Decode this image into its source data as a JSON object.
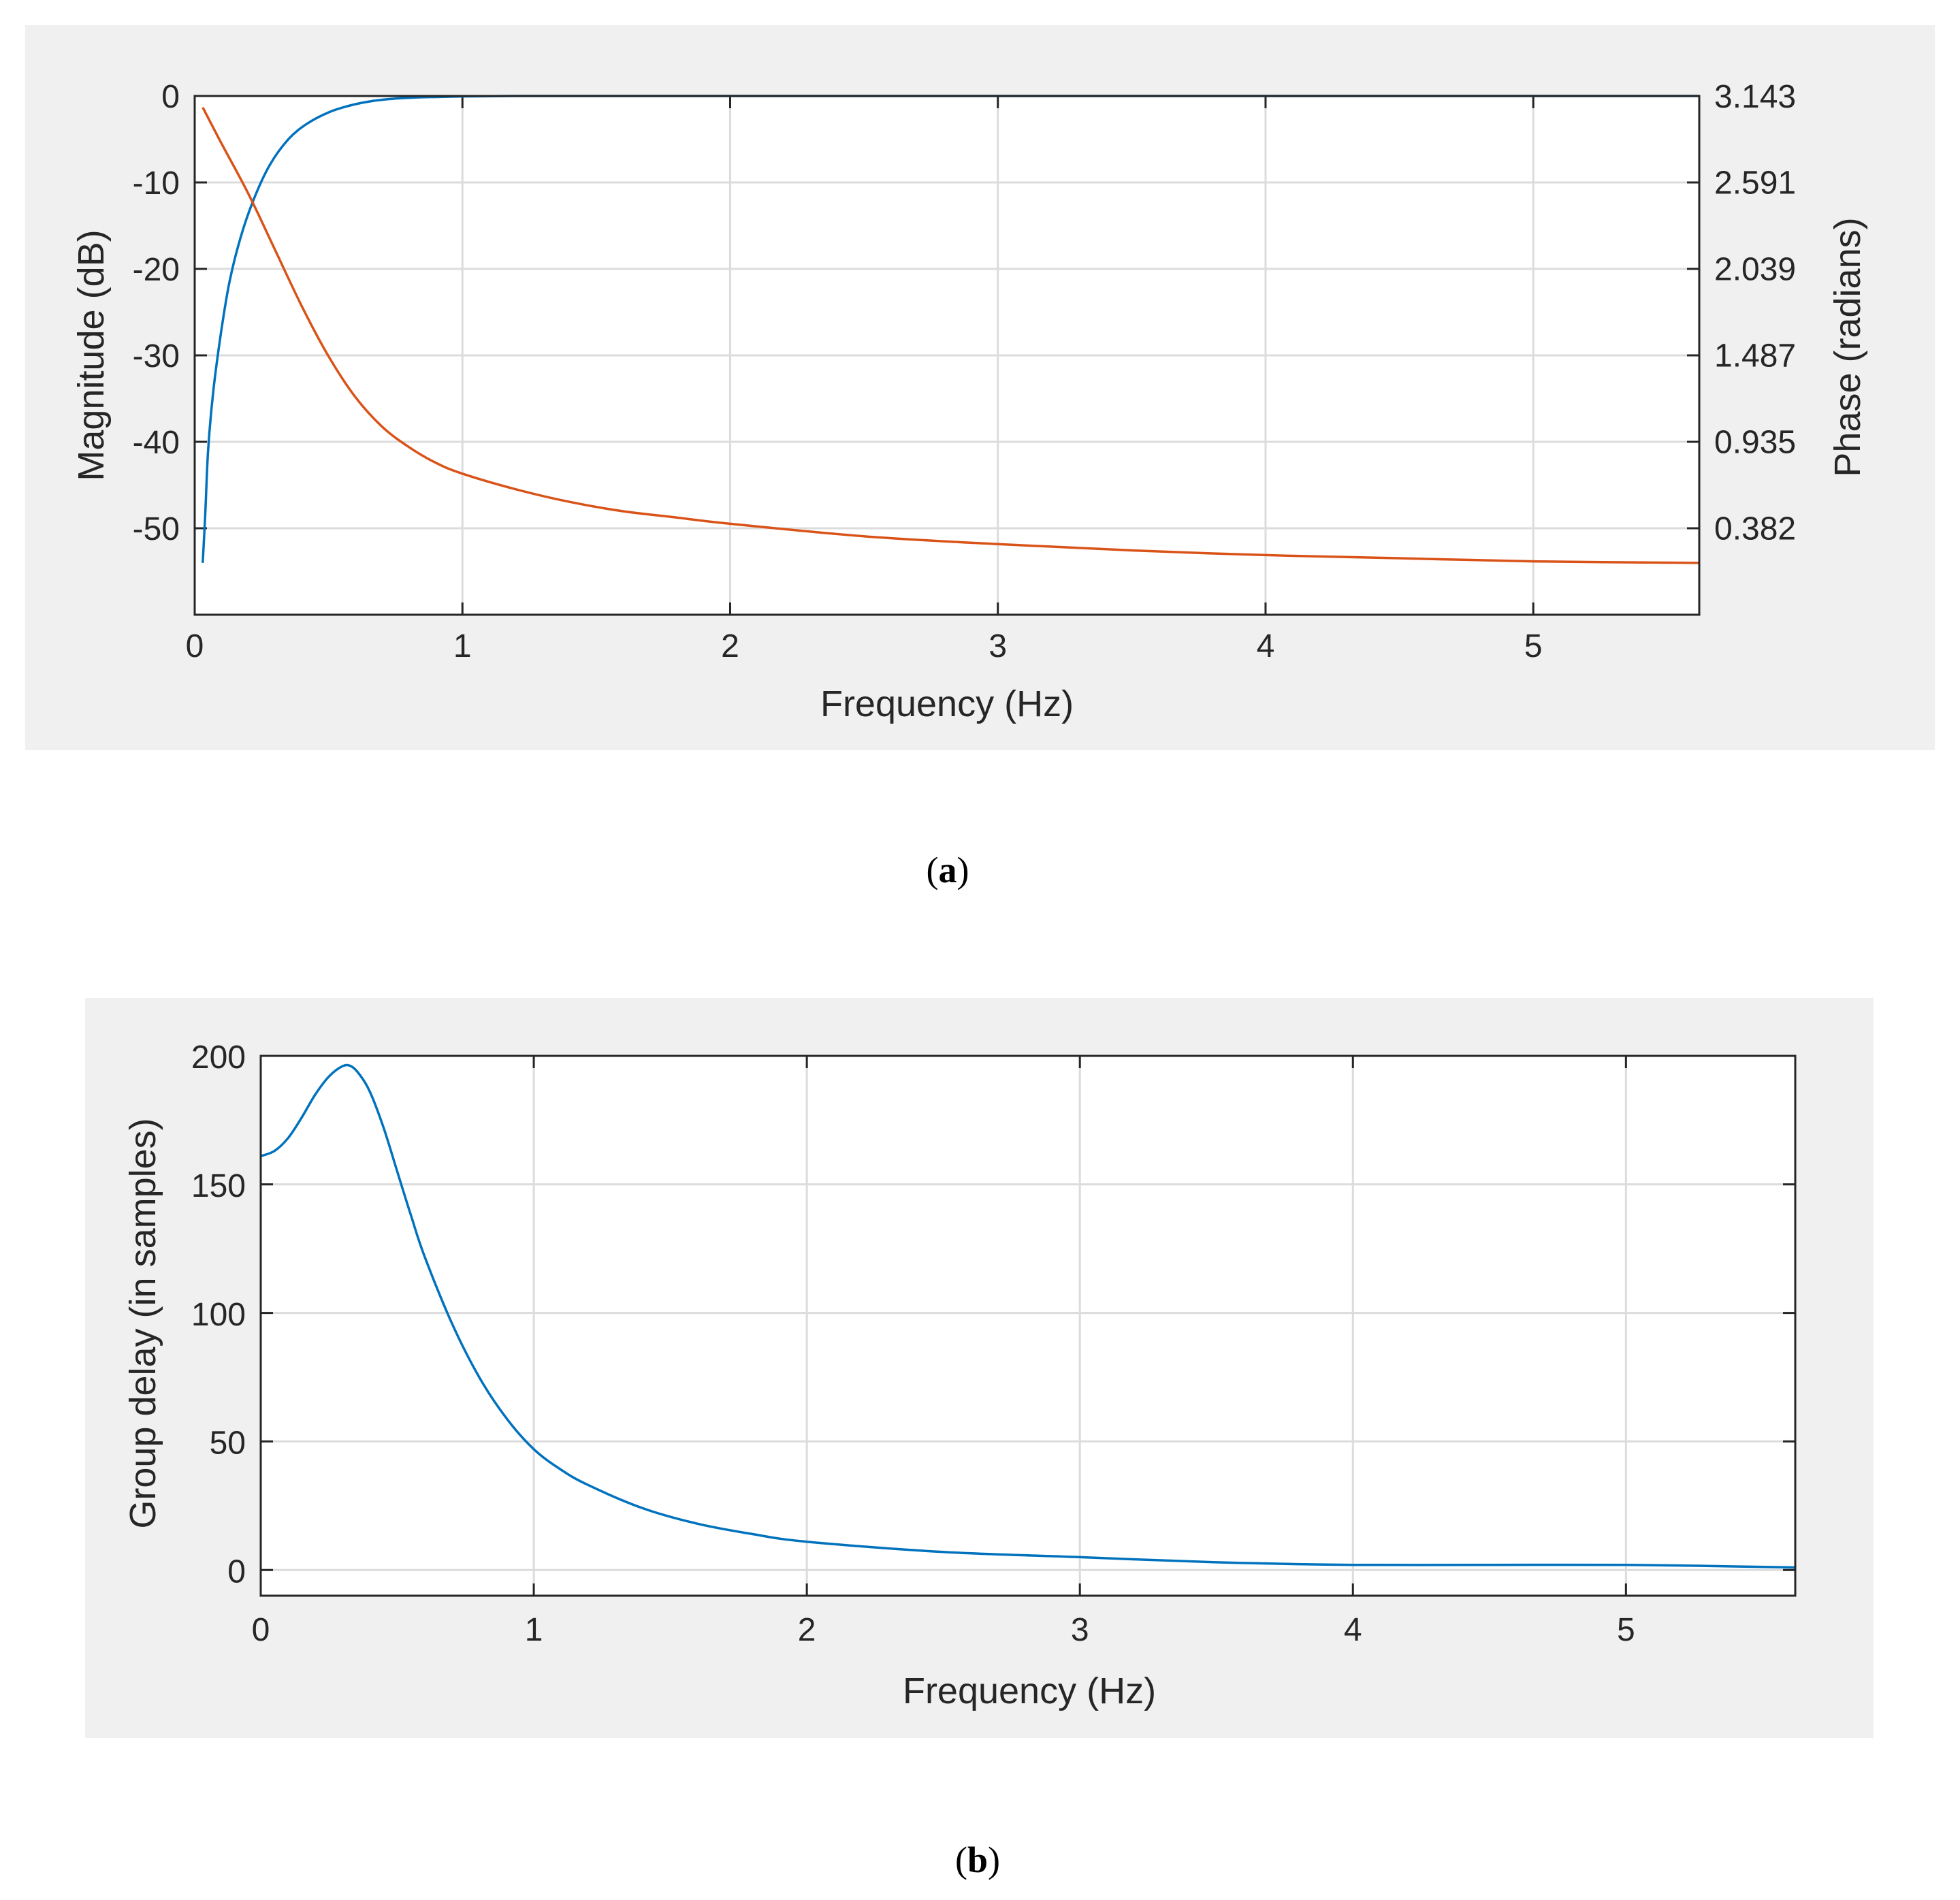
{
  "colors": {
    "panel_bg": "#f0f0f0",
    "magnitude": "#0072bd",
    "phase": "#d95319",
    "group_delay": "#0072bd"
  },
  "chart_data": [
    {
      "type": "line",
      "caption_label": "a",
      "xlabel": "Frequency (Hz)",
      "ylabel": "Magnitude (dB)",
      "y2label": "Phase (radians)",
      "xlim": [
        0,
        5.62
      ],
      "ylim": [
        -60,
        0
      ],
      "y2lim": [
        -0.171,
        3.143
      ],
      "xticks": [
        0,
        1,
        2,
        3,
        4,
        5
      ],
      "yticks": [
        0,
        -10,
        -20,
        -30,
        -40,
        -50
      ],
      "ytick_labels": [
        "0",
        "-10",
        "-20",
        "-30",
        "-40",
        "-50"
      ],
      "y2ticks": [
        3.143,
        2.591,
        2.039,
        1.487,
        0.935,
        0.382
      ],
      "y2tick_labels": [
        "3.143",
        "2.591",
        "2.039",
        "1.487",
        "0.935",
        "0.382"
      ],
      "grid": true,
      "series": [
        {
          "name": "Magnitude",
          "axis": "left",
          "x": [
            0.03,
            0.04,
            0.05,
            0.07,
            0.1,
            0.13,
            0.17,
            0.22,
            0.28,
            0.35,
            0.42,
            0.5,
            0.58,
            0.66,
            0.75,
            0.85,
            1.0,
            1.2,
            1.5,
            2.0,
            3.0,
            4.0,
            5.0,
            5.62
          ],
          "y": [
            -54,
            -48,
            -41,
            -34,
            -27,
            -21.5,
            -16.5,
            -12,
            -8,
            -5,
            -3.2,
            -1.9,
            -1.1,
            -0.6,
            -0.3,
            -0.15,
            -0.05,
            0,
            0,
            0,
            0,
            0,
            0,
            0
          ]
        },
        {
          "name": "Phase",
          "axis": "right",
          "x": [
            0.03,
            0.1,
            0.2,
            0.3,
            0.4,
            0.5,
            0.6,
            0.7,
            0.8,
            0.9,
            1.0,
            1.2,
            1.4,
            1.6,
            1.8,
            2.0,
            2.5,
            3.0,
            3.5,
            4.0,
            4.5,
            5.0,
            5.62
          ],
          "y": [
            3.07,
            2.84,
            2.52,
            2.16,
            1.8,
            1.48,
            1.22,
            1.03,
            0.9,
            0.8,
            0.73,
            0.63,
            0.55,
            0.49,
            0.45,
            0.41,
            0.33,
            0.28,
            0.24,
            0.21,
            0.19,
            0.17,
            0.16
          ]
        }
      ]
    },
    {
      "type": "line",
      "caption_label": "b",
      "xlabel": "Frequency (Hz)",
      "ylabel": "Group delay (in samples)",
      "xlim": [
        0,
        5.62
      ],
      "ylim": [
        -10,
        200
      ],
      "xticks": [
        0,
        1,
        2,
        3,
        4,
        5
      ],
      "yticks": [
        200,
        150,
        100,
        50,
        0
      ],
      "ytick_labels": [
        "200",
        "150",
        "100",
        "50",
        "0"
      ],
      "grid": true,
      "series": [
        {
          "name": "Group delay",
          "x": [
            0,
            0.05,
            0.1,
            0.15,
            0.2,
            0.25,
            0.3,
            0.33,
            0.36,
            0.4,
            0.45,
            0.5,
            0.55,
            0.6,
            0.7,
            0.8,
            0.9,
            1.0,
            1.1,
            1.2,
            1.4,
            1.6,
            1.8,
            2.0,
            2.5,
            3.0,
            3.5,
            4.0,
            4.5,
            5.0,
            5.62
          ],
          "y": [
            161,
            163,
            168,
            176,
            185,
            192,
            196,
            196,
            193,
            186,
            172,
            155,
            138,
            122,
            96,
            75,
            59,
            47,
            39,
            33,
            24,
            18,
            14,
            11,
            7,
            5,
            3,
            2,
            2,
            2,
            1
          ]
        }
      ]
    }
  ]
}
